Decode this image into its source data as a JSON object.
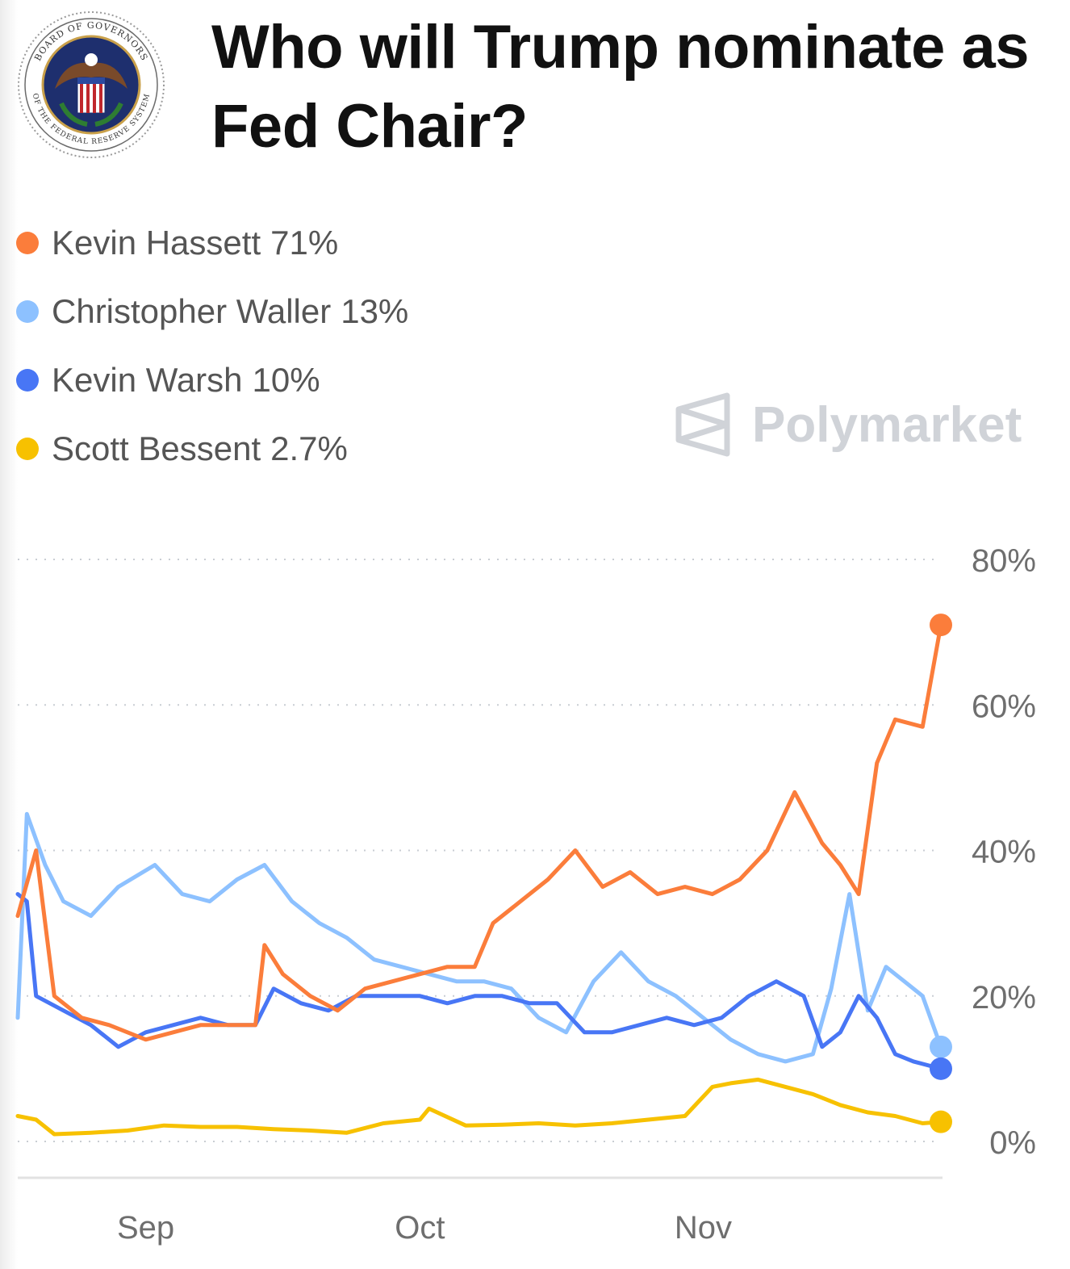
{
  "header": {
    "title": "Who will Trump nominate as Fed Chair?",
    "seal_text_top": "BOARD OF GOVERNORS",
    "seal_text_bottom": "OF THE FEDERAL RESERVE SYSTEM"
  },
  "watermark": {
    "text": "Polymarket",
    "icon": "polymarket-logo-icon"
  },
  "legend": {
    "items": [
      {
        "name": "Kevin Hassett",
        "value": "71%",
        "color": "#fb7d3b"
      },
      {
        "name": "Christopher Waller",
        "value": "13%",
        "color": "#8dc1ff"
      },
      {
        "name": "Kevin Warsh",
        "value": "10%",
        "color": "#4876f5"
      },
      {
        "name": "Scott Bessent",
        "value": "2.7%",
        "color": "#f7c100"
      }
    ]
  },
  "chart_data": {
    "type": "line",
    "title": "Who will Trump nominate as Fed Chair?",
    "xlabel": "",
    "ylabel": "",
    "x_ticks": [
      "Sep",
      "Oct",
      "Nov"
    ],
    "y_ticks": [
      "80%",
      "60%",
      "40%",
      "20%",
      "0%"
    ],
    "ylim": [
      0,
      80
    ],
    "grid": "horizontal dotted",
    "legend_position": "top-left",
    "series": [
      {
        "name": "Kevin Hassett",
        "color": "#fb7d3b",
        "x": [
          "Aug 18",
          "Aug 20",
          "Aug 22",
          "Aug 25",
          "Aug 28",
          "Sep 1",
          "Sep 4",
          "Sep 7",
          "Sep 10",
          "Sep 13",
          "Sep 14",
          "Sep 16",
          "Sep 19",
          "Sep 22",
          "Sep 25",
          "Sep 28",
          "Oct 1",
          "Oct 4",
          "Oct 7",
          "Oct 9",
          "Oct 12",
          "Oct 15",
          "Oct 18",
          "Oct 21",
          "Oct 24",
          "Oct 27",
          "Oct 30",
          "Nov 2",
          "Nov 5",
          "Nov 8",
          "Nov 11",
          "Nov 14",
          "Nov 16",
          "Nov 18",
          "Nov 20",
          "Nov 21",
          "Nov 22",
          "Nov 25",
          "Nov 27"
        ],
        "values": [
          31,
          40,
          20,
          17,
          16,
          14,
          15,
          16,
          16,
          16,
          27,
          23,
          20,
          18,
          21,
          22,
          23,
          24,
          24,
          30,
          33,
          36,
          40,
          35,
          37,
          34,
          35,
          34,
          36,
          40,
          48,
          41,
          38,
          34,
          52,
          55,
          58,
          57,
          71
        ]
      },
      {
        "name": "Christopher Waller",
        "color": "#8dc1ff",
        "x": [
          "Aug 18",
          "Aug 19",
          "Aug 21",
          "Aug 23",
          "Aug 26",
          "Aug 29",
          "Sep 2",
          "Sep 5",
          "Sep 8",
          "Sep 11",
          "Sep 14",
          "Sep 17",
          "Sep 20",
          "Sep 23",
          "Sep 26",
          "Sep 29",
          "Oct 2",
          "Oct 5",
          "Oct 8",
          "Oct 11",
          "Oct 14",
          "Oct 17",
          "Oct 20",
          "Oct 23",
          "Oct 26",
          "Oct 29",
          "Nov 1",
          "Nov 4",
          "Nov 7",
          "Nov 10",
          "Nov 13",
          "Nov 15",
          "Nov 17",
          "Nov 19",
          "Nov 21",
          "Nov 23",
          "Nov 25",
          "Nov 27"
        ],
        "values": [
          17,
          45,
          38,
          33,
          31,
          35,
          38,
          34,
          33,
          36,
          38,
          33,
          30,
          28,
          25,
          24,
          23,
          22,
          22,
          21,
          17,
          15,
          22,
          26,
          22,
          20,
          17,
          14,
          12,
          11,
          12,
          21,
          34,
          18,
          24,
          22,
          20,
          13
        ]
      },
      {
        "name": "Kevin Warsh",
        "color": "#4876f5",
        "x": [
          "Aug 18",
          "Aug 19",
          "Aug 20",
          "Aug 23",
          "Aug 26",
          "Aug 29",
          "Sep 1",
          "Sep 4",
          "Sep 7",
          "Sep 10",
          "Sep 13",
          "Sep 15",
          "Sep 18",
          "Sep 21",
          "Sep 24",
          "Sep 27",
          "Oct 1",
          "Oct 4",
          "Oct 7",
          "Oct 10",
          "Oct 13",
          "Oct 16",
          "Oct 19",
          "Oct 22",
          "Oct 25",
          "Oct 28",
          "Oct 31",
          "Nov 3",
          "Nov 6",
          "Nov 9",
          "Nov 12",
          "Nov 14",
          "Nov 16",
          "Nov 18",
          "Nov 20",
          "Nov 22",
          "Nov 24",
          "Nov 27"
        ],
        "values": [
          34,
          33,
          20,
          18,
          16,
          13,
          15,
          16,
          17,
          16,
          16,
          21,
          19,
          18,
          20,
          20,
          20,
          19,
          20,
          20,
          19,
          19,
          15,
          15,
          16,
          17,
          16,
          17,
          20,
          22,
          20,
          13,
          15,
          20,
          17,
          12,
          11,
          10
        ]
      },
      {
        "name": "Scott Bessent",
        "color": "#f7c100",
        "x": [
          "Aug 18",
          "Aug 20",
          "Aug 22",
          "Aug 26",
          "Aug 30",
          "Sep 3",
          "Sep 7",
          "Sep 11",
          "Sep 15",
          "Sep 19",
          "Sep 23",
          "Sep 27",
          "Oct 1",
          "Oct 2",
          "Oct 6",
          "Oct 10",
          "Oct 14",
          "Oct 18",
          "Oct 22",
          "Oct 26",
          "Oct 30",
          "Nov 2",
          "Nov 4",
          "Nov 7",
          "Nov 10",
          "Nov 13",
          "Nov 16",
          "Nov 19",
          "Nov 22",
          "Nov 25",
          "Nov 27"
        ],
        "values": [
          3.5,
          3,
          1,
          1.2,
          1.5,
          2.2,
          2,
          2,
          1.7,
          1.5,
          1.2,
          2.5,
          3,
          4.5,
          2.2,
          2.3,
          2.5,
          2.2,
          2.5,
          3,
          3.5,
          7.5,
          8,
          8.5,
          7.5,
          6.5,
          5,
          4,
          3.5,
          2.5,
          2.7
        ]
      }
    ]
  }
}
